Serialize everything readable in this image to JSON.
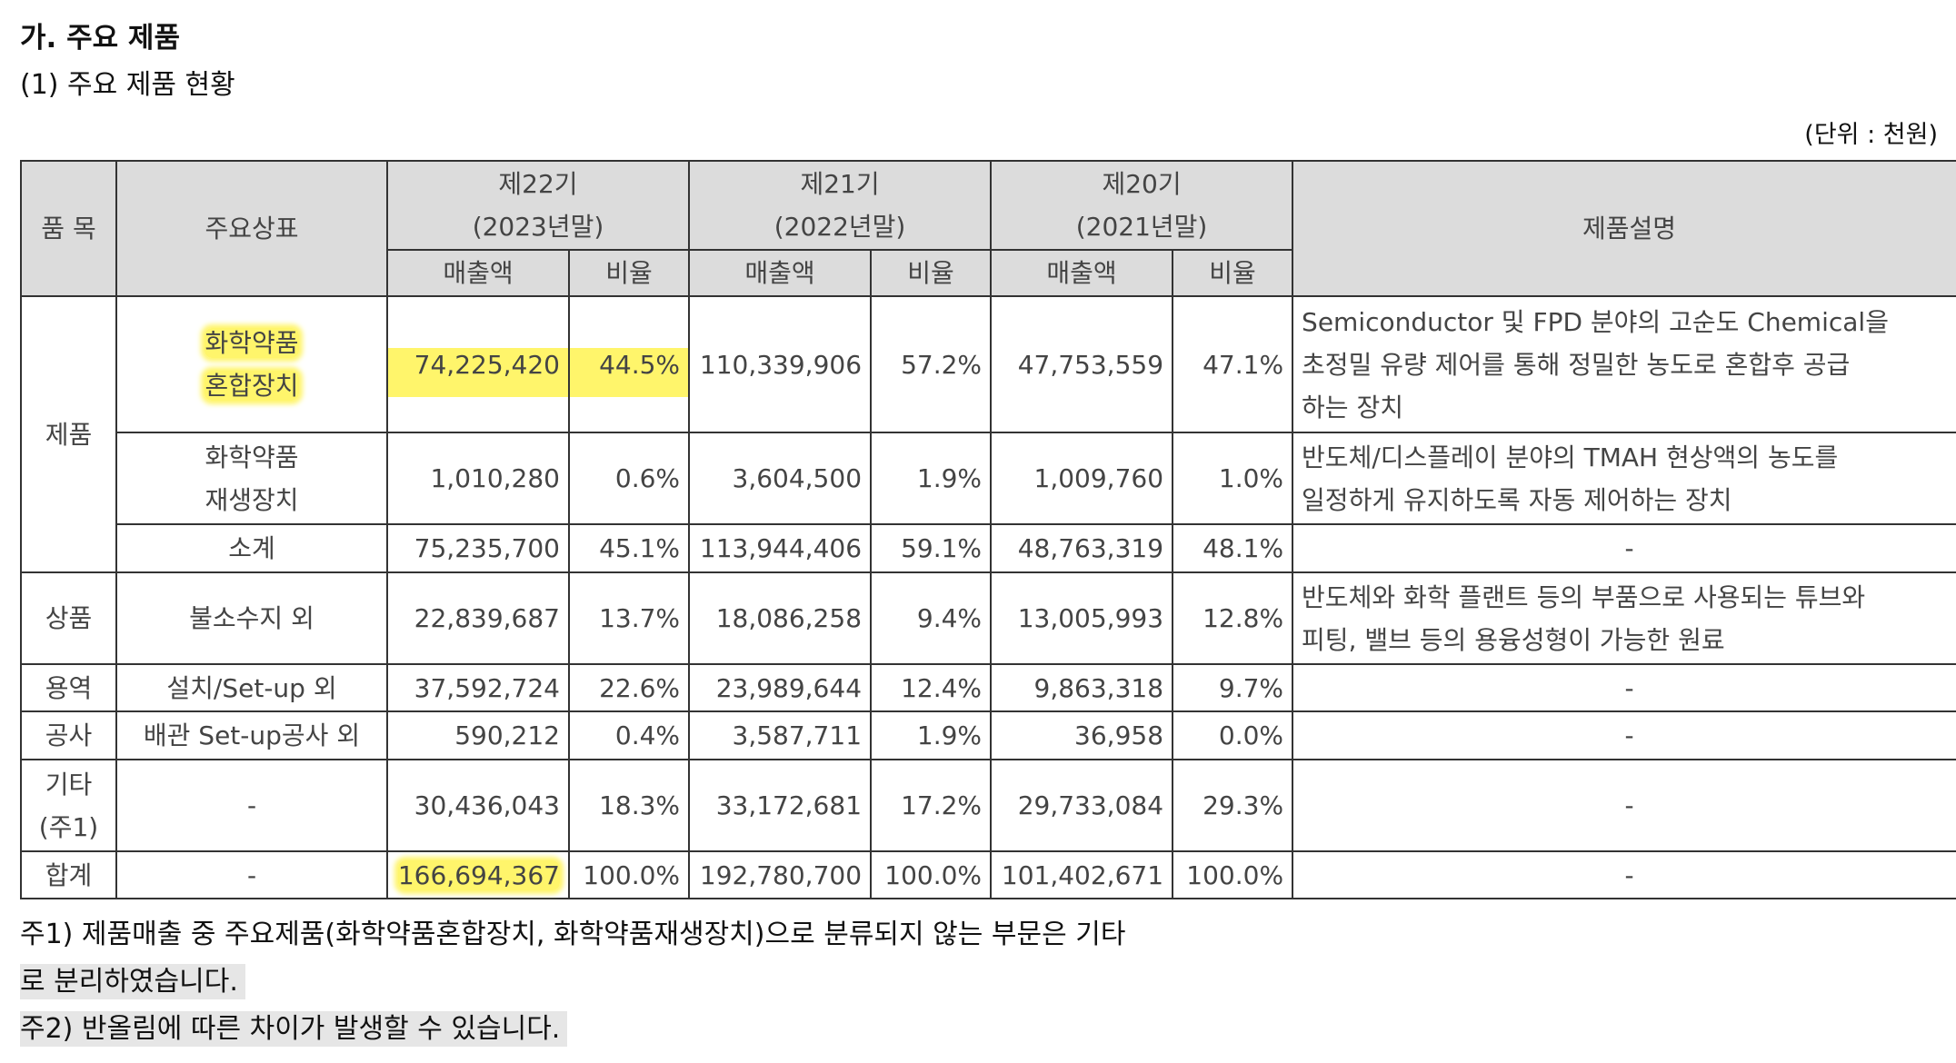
{
  "section_title": "가. 주요 제품",
  "sub_title": "(1) 주요 제품 현황",
  "unit": "(단위 : 천원)",
  "headers": {
    "item": "품 목",
    "brand": "주요상표",
    "period1_line1": "제22기",
    "period1_line2": "(2023년말)",
    "period2_line1": "제21기",
    "period2_line2": "(2022년말)",
    "period3_line1": "제20기",
    "period3_line2": "(2021년말)",
    "description": "제품설명",
    "sales": "매출액",
    "ratio": "비율"
  },
  "rows": [
    {
      "category": "제품",
      "brand_line1": "화학약품",
      "brand_line2": "혼합장치",
      "s22": "74,225,420",
      "r22": "44.5%",
      "s21": "110,339,906",
      "r21": "57.2%",
      "s20": "47,753,559",
      "r20": "47.1%",
      "desc_line1": "Semiconductor 및 FPD 분야의 고순도 Chemical을",
      "desc_line2": "초정밀 유량 제어를 통해 정밀한 농도로 혼합후 공급",
      "desc_line3": "하는 장치"
    },
    {
      "brand_line1": "화학약품",
      "brand_line2": "재생장치",
      "s22": "1,010,280",
      "r22": "0.6%",
      "s21": "3,604,500",
      "r21": "1.9%",
      "s20": "1,009,760",
      "r20": "1.0%",
      "desc_line1": "반도체/디스플레이 분야의 TMAH 현상액의 농도를",
      "desc_line2": "일정하게 유지하도록 자동 제어하는 장치"
    },
    {
      "brand": "소계",
      "s22": "75,235,700",
      "r22": "45.1%",
      "s21": "113,944,406",
      "r21": "59.1%",
      "s20": "48,763,319",
      "r20": "48.1%",
      "desc": "-"
    },
    {
      "category": "상품",
      "brand": "불소수지 외",
      "s22": "22,839,687",
      "r22": "13.7%",
      "s21": "18,086,258",
      "r21": "9.4%",
      "s20": "13,005,993",
      "r20": "12.8%",
      "desc_line1": "반도체와 화학 플랜트 등의 부품으로 사용되는 튜브와",
      "desc_line2": "피팅, 밸브 등의 용융성형이 가능한 원료"
    },
    {
      "category": "용역",
      "brand": "설치/Set-up 외",
      "s22": "37,592,724",
      "r22": "22.6%",
      "s21": "23,989,644",
      "r21": "12.4%",
      "s20": "9,863,318",
      "r20": "9.7%",
      "desc": "-"
    },
    {
      "category": "공사",
      "brand": "배관 Set-up공사 외",
      "s22": "590,212",
      "r22": "0.4%",
      "s21": "3,587,711",
      "r21": "1.9%",
      "s20": "36,958",
      "r20": "0.0%",
      "desc": "-"
    },
    {
      "category_line1": "기타",
      "category_line2": "(주1)",
      "brand": "-",
      "s22": "30,436,043",
      "r22": "18.3%",
      "s21": "33,172,681",
      "r21": "17.2%",
      "s20": "29,733,084",
      "r20": "29.3%",
      "desc": "-"
    },
    {
      "category": "합계",
      "brand": "-",
      "s22": "166,694,367",
      "r22": "100.0%",
      "s21": "192,780,700",
      "r21": "100.0%",
      "s20": "101,402,671",
      "r20": "100.0%",
      "desc": "-"
    }
  ],
  "notes": {
    "note1_line1": "주1) 제품매출 중 주요제품(화학약품혼합장치, 화학약품재생장치)으로 분류되지 않는 부문은 기타",
    "note1_line2": "로 분리하였습니다.",
    "note2": "주2) 반올림에 따른 차이가 발생할 수 있습니다."
  },
  "colors": {
    "highlight": "#fff56b",
    "header_bg": "#dcdcdc",
    "note_bg": "#e6e6e6"
  }
}
